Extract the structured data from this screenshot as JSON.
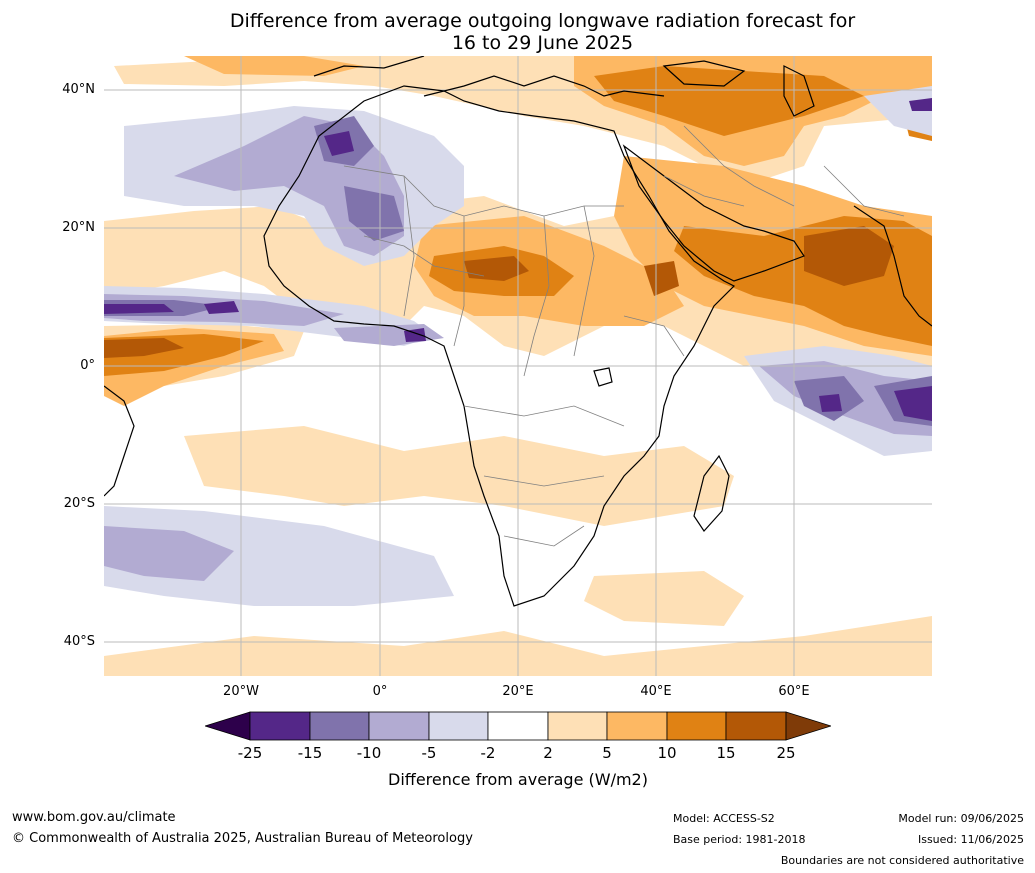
{
  "title": {
    "line1": "Difference from average outgoing longwave radiation forecast for",
    "line2": "16 to 29 June 2025"
  },
  "map": {
    "lat_labels": [
      "40°N",
      "20°N",
      "0°",
      "20°S",
      "40°S"
    ],
    "lon_labels": [
      "20°W",
      "0°",
      "20°E",
      "40°E",
      "60°E"
    ],
    "colors": {
      "p25": "#2d004b",
      "p15_25": "#542788",
      "p10_15": "#8073ac",
      "p5_10": "#b2abd2",
      "p2_5": "#d8daeb",
      "neutral": "#ffffff",
      "o2_5": "#fee0b6",
      "o5_10": "#fdb863",
      "o10_15": "#e08214",
      "o15_25": "#b35806",
      "o25": "#7f3b08",
      "land_outline": "#000000",
      "border": "#808080",
      "grid": "#bbbbbb"
    }
  },
  "colorbar": {
    "ticks": [
      "-25",
      "-15",
      "-10",
      "-5",
      "-2",
      "2",
      "5",
      "10",
      "15",
      "25"
    ],
    "title": "Difference from average (W/m2)"
  },
  "footer": {
    "website": "www.bom.gov.au/climate",
    "copyright": "© Commonwealth of Australia 2025, Australian Bureau of Meteorology",
    "model": "Model: ACCESS-S2",
    "base_period": "Base period: 1981-2018",
    "model_run": "Model run: 09/06/2025",
    "issued": "Issued: 11/06/2025",
    "disclaimer": "Boundaries are not considered authoritative"
  }
}
